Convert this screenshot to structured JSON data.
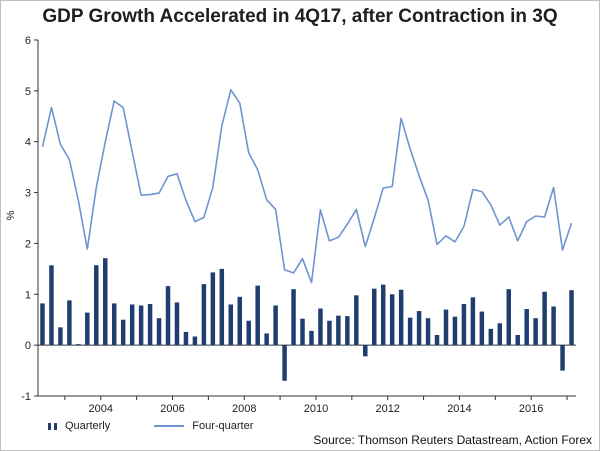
{
  "chart_data": {
    "type": "bar+line",
    "title": "GDP Growth Accelerated in 4Q17, after Contraction in 3Q",
    "ylabel": "%",
    "xlabel": "",
    "ylim": [
      -1,
      6
    ],
    "yticks": [
      -1,
      0,
      1,
      2,
      3,
      4,
      5,
      6
    ],
    "xlim": [
      2002.25,
      2017.25
    ],
    "xticks": [
      2004,
      2006,
      2008,
      2010,
      2012,
      2014,
      2016
    ],
    "grid": false,
    "legend_position": "bottom-left",
    "colors": {
      "bar": "#1f3d6e",
      "line": "#6f94d1",
      "axis": "#333333"
    },
    "series": [
      {
        "name": "Quarterly",
        "type": "bar",
        "start": 2002.25,
        "step": 0.25,
        "values": [
          0.82,
          1.57,
          0.35,
          0.88,
          0.02,
          0.64,
          1.57,
          1.71,
          0.82,
          0.5,
          0.8,
          0.78,
          0.81,
          0.53,
          1.16,
          0.84,
          0.26,
          0.17,
          1.2,
          1.43,
          1.5,
          0.8,
          0.95,
          0.48,
          1.17,
          0.23,
          0.78,
          -0.7,
          1.1,
          0.52,
          0.28,
          0.72,
          0.48,
          0.58,
          0.57,
          0.98,
          -0.22,
          1.11,
          1.19,
          1.0,
          1.09,
          0.54,
          0.67,
          0.53,
          0.2,
          0.7,
          0.56,
          0.81,
          0.94,
          0.66,
          0.32,
          0.43,
          1.1,
          0.2,
          0.71,
          0.53,
          1.05,
          0.76,
          -0.5,
          1.08
        ]
      },
      {
        "name": "Four-quarter",
        "type": "line",
        "start": 2002.25,
        "step": 0.25,
        "values": [
          3.9,
          4.67,
          3.95,
          3.65,
          2.85,
          1.89,
          3.1,
          4.0,
          4.8,
          4.67,
          3.8,
          2.95,
          2.96,
          2.99,
          3.32,
          3.37,
          2.85,
          2.43,
          2.51,
          3.1,
          4.31,
          5.02,
          4.76,
          3.78,
          3.45,
          2.86,
          2.67,
          1.48,
          1.42,
          1.7,
          1.23,
          2.66,
          2.05,
          2.12,
          2.38,
          2.67,
          1.94,
          2.5,
          3.09,
          3.12,
          4.46,
          3.86,
          3.33,
          2.85,
          1.98,
          2.15,
          2.03,
          2.33,
          3.06,
          3.02,
          2.76,
          2.36,
          2.52,
          2.05,
          2.43,
          2.54,
          2.52,
          3.1,
          1.87,
          2.4
        ]
      }
    ],
    "source": "Source: Thomson Reuters Datastream, Action Forex"
  }
}
